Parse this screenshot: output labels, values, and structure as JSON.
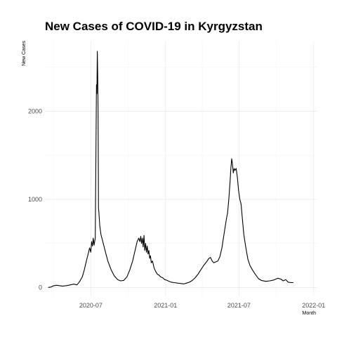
{
  "chart_data": {
    "type": "line",
    "title": "New Cases of COVID-19 in Kyrgyzstan",
    "xlabel": "Month",
    "ylabel": "New Cases",
    "x_ticks": [
      "2020-07",
      "2021-01",
      "2021-07",
      "2022-01"
    ],
    "y_ticks": [
      0,
      1000,
      2000
    ],
    "xlim": [
      "2020-03-10",
      "2022-01-10"
    ],
    "ylim": [
      -100,
      2800
    ],
    "grid": true,
    "series": [
      {
        "color": "#000000",
        "points": [
          [
            "2020-03-18",
            0
          ],
          [
            "2020-03-25",
            5
          ],
          [
            "2020-04-01",
            20
          ],
          [
            "2020-04-08",
            25
          ],
          [
            "2020-04-15",
            20
          ],
          [
            "2020-04-22",
            15
          ],
          [
            "2020-05-01",
            20
          ],
          [
            "2020-05-10",
            28
          ],
          [
            "2020-05-20",
            38
          ],
          [
            "2020-05-28",
            30
          ],
          [
            "2020-06-03",
            65
          ],
          [
            "2020-06-10",
            120
          ],
          [
            "2020-06-15",
            200
          ],
          [
            "2020-06-20",
            300
          ],
          [
            "2020-06-25",
            390
          ],
          [
            "2020-06-28",
            450
          ],
          [
            "2020-07-01",
            400
          ],
          [
            "2020-07-03",
            520
          ],
          [
            "2020-07-05",
            470
          ],
          [
            "2020-07-07",
            560
          ],
          [
            "2020-07-09",
            480
          ],
          [
            "2020-07-12",
            560
          ],
          [
            "2020-07-14",
            1800
          ],
          [
            "2020-07-15",
            2300
          ],
          [
            "2020-07-16",
            2200
          ],
          [
            "2020-07-17",
            2680
          ],
          [
            "2020-07-18",
            2400
          ],
          [
            "2020-07-19",
            2000
          ],
          [
            "2020-07-20",
            900
          ],
          [
            "2020-07-21",
            850
          ],
          [
            "2020-07-23",
            700
          ],
          [
            "2020-07-26",
            600
          ],
          [
            "2020-07-30",
            530
          ],
          [
            "2020-08-05",
            420
          ],
          [
            "2020-08-12",
            300
          ],
          [
            "2020-08-20",
            200
          ],
          [
            "2020-08-28",
            130
          ],
          [
            "2020-09-05",
            90
          ],
          [
            "2020-09-12",
            75
          ],
          [
            "2020-09-20",
            80
          ],
          [
            "2020-09-28",
            120
          ],
          [
            "2020-10-05",
            200
          ],
          [
            "2020-10-12",
            300
          ],
          [
            "2020-10-18",
            420
          ],
          [
            "2020-10-23",
            520
          ],
          [
            "2020-10-27",
            560
          ],
          [
            "2020-10-30",
            520
          ],
          [
            "2020-11-01",
            580
          ],
          [
            "2020-11-03",
            500
          ],
          [
            "2020-11-05",
            560
          ],
          [
            "2020-11-07",
            460
          ],
          [
            "2020-11-09",
            590
          ],
          [
            "2020-11-11",
            420
          ],
          [
            "2020-11-13",
            500
          ],
          [
            "2020-11-15",
            400
          ],
          [
            "2020-11-17",
            470
          ],
          [
            "2020-11-19",
            380
          ],
          [
            "2020-11-21",
            420
          ],
          [
            "2020-11-23",
            330
          ],
          [
            "2020-11-25",
            360
          ],
          [
            "2020-11-27",
            280
          ],
          [
            "2020-11-30",
            300
          ],
          [
            "2020-12-04",
            220
          ],
          [
            "2020-12-08",
            180
          ],
          [
            "2020-12-12",
            150
          ],
          [
            "2020-12-16",
            140
          ],
          [
            "2020-12-20",
            120
          ],
          [
            "2020-12-25",
            110
          ],
          [
            "2020-12-30",
            90
          ],
          [
            "2021-01-05",
            80
          ],
          [
            "2021-01-10",
            70
          ],
          [
            "2021-01-15",
            60
          ],
          [
            "2021-01-22",
            55
          ],
          [
            "2021-01-30",
            50
          ],
          [
            "2021-02-08",
            45
          ],
          [
            "2021-02-15",
            40
          ],
          [
            "2021-02-22",
            50
          ],
          [
            "2021-03-01",
            60
          ],
          [
            "2021-03-08",
            80
          ],
          [
            "2021-03-15",
            110
          ],
          [
            "2021-03-22",
            150
          ],
          [
            "2021-03-29",
            200
          ],
          [
            "2021-04-05",
            250
          ],
          [
            "2021-04-12",
            290
          ],
          [
            "2021-04-18",
            330
          ],
          [
            "2021-04-22",
            340
          ],
          [
            "2021-04-26",
            300
          ],
          [
            "2021-04-30",
            280
          ],
          [
            "2021-05-05",
            290
          ],
          [
            "2021-05-10",
            300
          ],
          [
            "2021-05-15",
            350
          ],
          [
            "2021-05-20",
            450
          ],
          [
            "2021-05-25",
            600
          ],
          [
            "2021-05-30",
            750
          ],
          [
            "2021-06-03",
            850
          ],
          [
            "2021-06-06",
            1000
          ],
          [
            "2021-06-09",
            1200
          ],
          [
            "2021-06-11",
            1350
          ],
          [
            "2021-06-13",
            1460
          ],
          [
            "2021-06-15",
            1400
          ],
          [
            "2021-06-17",
            1300
          ],
          [
            "2021-06-19",
            1350
          ],
          [
            "2021-06-21",
            1330
          ],
          [
            "2021-06-24",
            1350
          ],
          [
            "2021-06-27",
            1250
          ],
          [
            "2021-06-30",
            1100
          ],
          [
            "2021-07-03",
            1000
          ],
          [
            "2021-07-06",
            950
          ],
          [
            "2021-07-09",
            800
          ],
          [
            "2021-07-13",
            600
          ],
          [
            "2021-07-18",
            450
          ],
          [
            "2021-07-23",
            320
          ],
          [
            "2021-07-28",
            250
          ],
          [
            "2021-08-03",
            200
          ],
          [
            "2021-08-10",
            150
          ],
          [
            "2021-08-18",
            100
          ],
          [
            "2021-08-25",
            80
          ],
          [
            "2021-09-05",
            70
          ],
          [
            "2021-09-15",
            75
          ],
          [
            "2021-09-25",
            85
          ],
          [
            "2021-10-05",
            105
          ],
          [
            "2021-10-12",
            95
          ],
          [
            "2021-10-18",
            75
          ],
          [
            "2021-10-24",
            90
          ],
          [
            "2021-10-30",
            60
          ],
          [
            "2021-11-06",
            55
          ],
          [
            "2021-11-12",
            55
          ]
        ]
      }
    ]
  }
}
